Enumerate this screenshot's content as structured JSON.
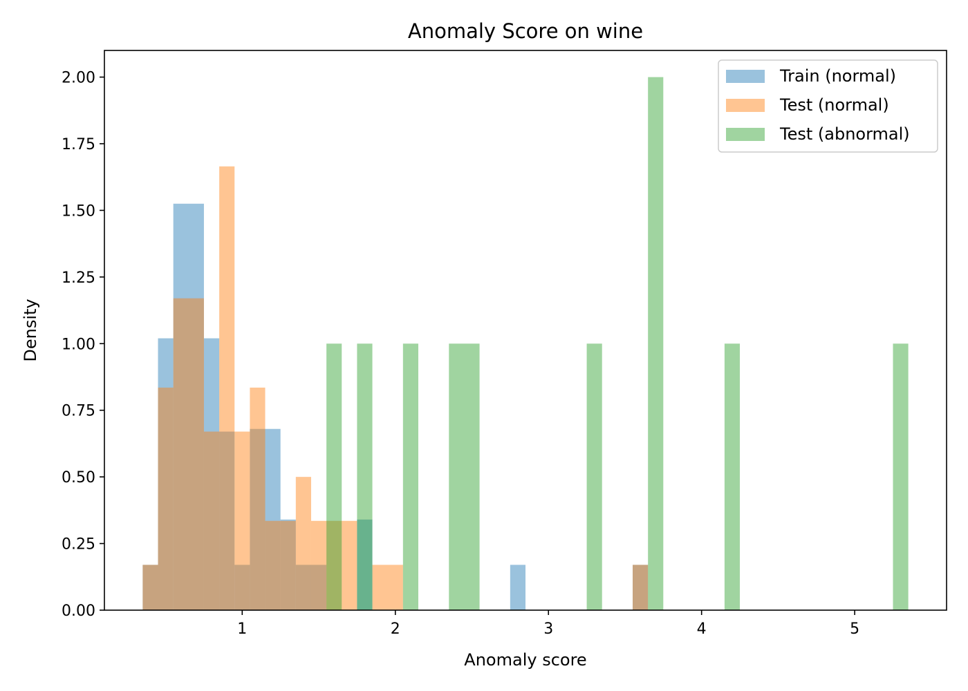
{
  "chart_data": {
    "type": "bar",
    "title": "Anomaly Score on wine",
    "xlabel": "Anomaly score",
    "ylabel": "Density",
    "xlim": [
      0.1,
      5.6
    ],
    "ylim": [
      0,
      2.1
    ],
    "xticks": [
      {
        "value": 1,
        "label": "1"
      },
      {
        "value": 2,
        "label": "2"
      },
      {
        "value": 3,
        "label": "3"
      },
      {
        "value": 4,
        "label": "4"
      },
      {
        "value": 5,
        "label": "5"
      }
    ],
    "yticks": [
      {
        "value": 0,
        "label": "0.00"
      },
      {
        "value": 0.25,
        "label": "0.25"
      },
      {
        "value": 0.5,
        "label": "0.50"
      },
      {
        "value": 0.75,
        "label": "0.75"
      },
      {
        "value": 1.0,
        "label": "1.00"
      },
      {
        "value": 1.25,
        "label": "1.25"
      },
      {
        "value": 1.5,
        "label": "1.50"
      },
      {
        "value": 1.75,
        "label": "1.75"
      },
      {
        "value": 2.0,
        "label": "2.00"
      }
    ],
    "grid": false,
    "legend_position": "top-right",
    "opacity": 0.45,
    "series": [
      {
        "name": "Train (normal)",
        "color": "#1f77b4",
        "bins": [
          [
            0.35,
            0.45,
            0.17
          ],
          [
            0.45,
            0.55,
            1.02
          ],
          [
            0.55,
            0.75,
            1.525
          ],
          [
            0.75,
            0.85,
            1.02
          ],
          [
            0.85,
            0.95,
            0.67
          ],
          [
            0.95,
            1.05,
            0.17
          ],
          [
            1.05,
            1.15,
            0.68
          ],
          [
            1.15,
            1.25,
            0.68
          ],
          [
            1.25,
            1.35,
            0.34
          ],
          [
            1.35,
            1.55,
            0.17
          ],
          [
            1.75,
            1.85,
            0.34
          ],
          [
            2.75,
            2.85,
            0.17
          ],
          [
            3.55,
            3.65,
            0.17
          ]
        ]
      },
      {
        "name": "Test (normal)",
        "color": "#ff7f0e",
        "bins": [
          [
            0.35,
            0.45,
            0.17
          ],
          [
            0.45,
            0.55,
            0.835
          ],
          [
            0.55,
            0.75,
            1.17
          ],
          [
            0.75,
            0.85,
            0.67
          ],
          [
            0.85,
            0.95,
            1.665
          ],
          [
            0.95,
            1.05,
            0.67
          ],
          [
            1.05,
            1.15,
            0.835
          ],
          [
            1.15,
            1.35,
            0.335
          ],
          [
            1.35,
            1.45,
            0.5
          ],
          [
            1.45,
            1.65,
            0.335
          ],
          [
            1.65,
            1.75,
            0.335
          ],
          [
            1.85,
            2.05,
            0.17
          ],
          [
            3.55,
            3.65,
            0.17
          ]
        ]
      },
      {
        "name": "Test (abnormal)",
        "color": "#2ca02c",
        "bins": [
          [
            1.55,
            1.65,
            1.0
          ],
          [
            1.75,
            1.85,
            1.0
          ],
          [
            2.05,
            2.15,
            1.0
          ],
          [
            2.35,
            2.55,
            1.0
          ],
          [
            3.25,
            3.35,
            1.0
          ],
          [
            3.65,
            3.75,
            2.0
          ],
          [
            4.15,
            4.25,
            1.0
          ],
          [
            5.25,
            5.35,
            1.0
          ]
        ]
      }
    ]
  }
}
